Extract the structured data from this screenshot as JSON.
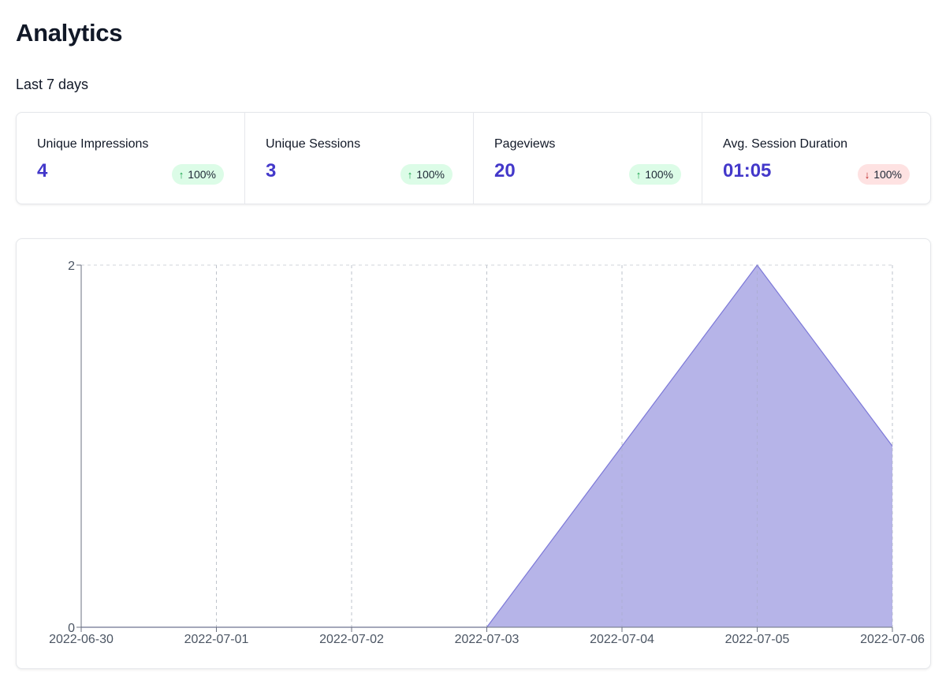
{
  "header": {
    "title": "Analytics",
    "period": "Last 7 days"
  },
  "stats": [
    {
      "label": "Unique Impressions",
      "value": "4",
      "change": "100%",
      "direction": "up",
      "icon": "arrow-up-icon"
    },
    {
      "label": "Unique Sessions",
      "value": "3",
      "change": "100%",
      "direction": "up",
      "icon": "arrow-up-icon"
    },
    {
      "label": "Pageviews",
      "value": "20",
      "change": "100%",
      "direction": "up",
      "icon": "arrow-up-icon"
    },
    {
      "label": "Avg. Session Duration",
      "value": "01:05",
      "change": "100%",
      "direction": "down",
      "icon": "arrow-down-icon"
    }
  ],
  "colors": {
    "accent": "#4338ca",
    "area_fill": "#b6b4e8",
    "area_stroke": "#7c78d8",
    "up_bg": "#dcfce7",
    "down_bg": "#fee2e2"
  },
  "chart_data": {
    "type": "area",
    "x": [
      "2022-06-30",
      "2022-07-01",
      "2022-07-02",
      "2022-07-03",
      "2022-07-04",
      "2022-07-05",
      "2022-07-06"
    ],
    "series": [
      {
        "values": [
          0,
          0,
          0,
          0,
          1,
          2,
          1
        ]
      }
    ],
    "yticks": [
      "0",
      "2"
    ],
    "ylim": [
      0,
      2
    ],
    "grid": true,
    "title": "",
    "xlabel": "",
    "ylabel": ""
  }
}
